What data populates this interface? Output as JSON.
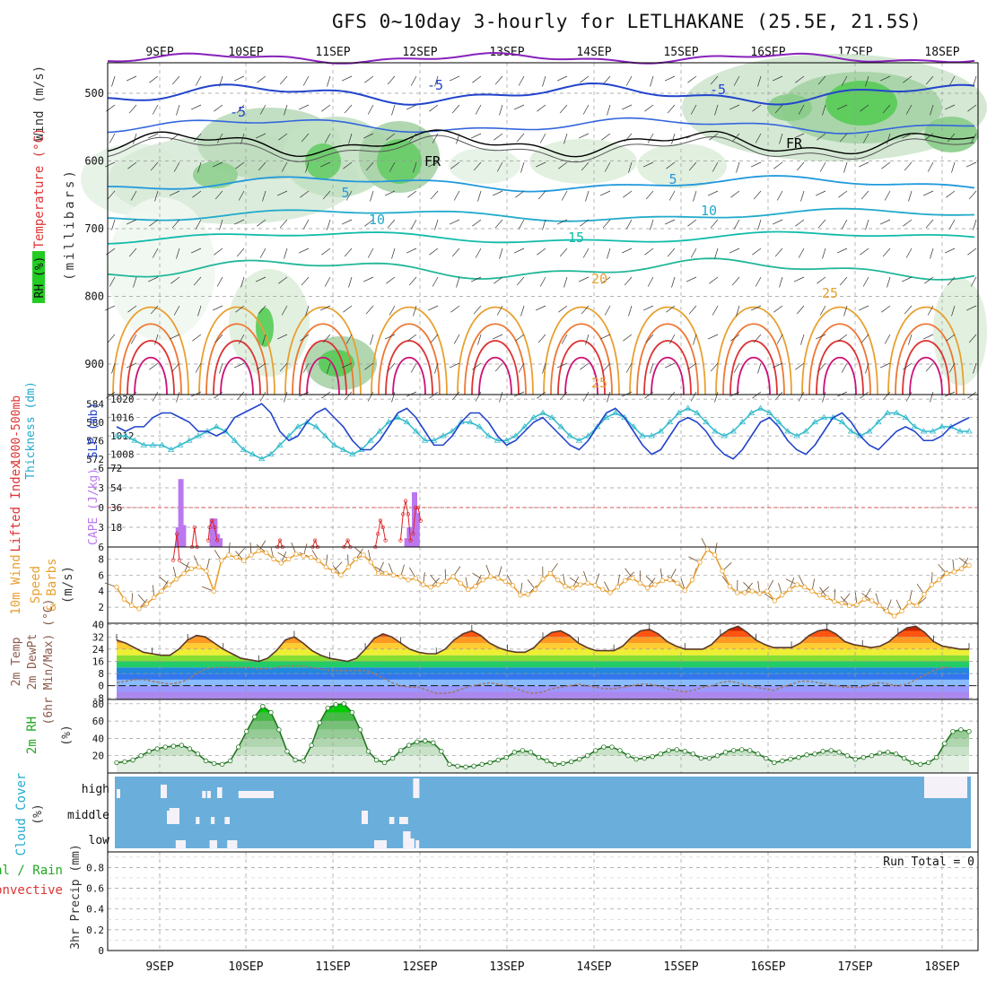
{
  "title": "GFS 0~10day 3-hourly for LETLHAKANE (25.5E, 21.5S)",
  "dates": [
    "9SEP",
    "10SEP",
    "11SEP",
    "12SEP",
    "13SEP",
    "14SEP",
    "15SEP",
    "16SEP",
    "17SEP",
    "18SEP"
  ],
  "colors": {
    "frame": "#000000",
    "grid": "#999999",
    "rh_green": "#22aa22",
    "temp_blue": "#2244cc",
    "cape": "#bb77ee",
    "lifted": "#dd2222",
    "wind": "#e8a030",
    "cloud": "#6aaedb"
  },
  "chart_data": [
    {
      "type": "heatmap",
      "name": "cross-section",
      "ylabels": [
        "Wind (m/s)",
        "Temperature (°C)",
        "RH (%)",
        "(millibars)"
      ],
      "yticks": [
        500,
        600,
        700,
        800,
        900
      ],
      "ylim": [
        945,
        455
      ],
      "contour_labels": [
        "-5",
        "-5",
        "-5",
        "5",
        "5",
        "10",
        "10",
        "15",
        "20",
        "25",
        "25",
        "FR",
        "FR"
      ]
    },
    {
      "type": "line",
      "name": "thickness-slp",
      "ylabels": [
        "1000-500mb",
        "Thickness (dm)",
        "SLP (mb)"
      ],
      "left_ticks": [
        584,
        580,
        576,
        572
      ],
      "right_ticks": [
        1020,
        1016,
        1012,
        1008
      ],
      "series": [
        {
          "name": "SLP",
          "axis": "right",
          "values": [
            1014,
            1013,
            1014,
            1014,
            1016,
            1017,
            1017,
            1016,
            1015,
            1013,
            1013,
            1012,
            1013,
            1016,
            1017,
            1018,
            1019,
            1017,
            1013,
            1011,
            1012,
            1015,
            1017,
            1018,
            1016,
            1014,
            1011,
            1009,
            1009,
            1011,
            1014,
            1017,
            1018,
            1016,
            1013,
            1010,
            1010,
            1012,
            1015,
            1017,
            1017,
            1015,
            1012,
            1010,
            1011,
            1013,
            1015,
            1016,
            1014,
            1012,
            1010,
            1009,
            1011,
            1014,
            1017,
            1018,
            1016,
            1013,
            1010,
            1008,
            1009,
            1012,
            1015,
            1016,
            1015,
            1013,
            1010,
            1008,
            1007,
            1009,
            1012,
            1015,
            1016,
            1014,
            1011,
            1009,
            1008,
            1010,
            1013,
            1016,
            1017,
            1015,
            1012,
            1010,
            1009,
            1011,
            1013,
            1014,
            1013,
            1011,
            1011,
            1012,
            1014,
            1015,
            1016
          ]
        },
        {
          "name": "1000-500mb Thickness",
          "axis": "left",
          "values": [
            577,
            577,
            576,
            575,
            575,
            575,
            574,
            575,
            576,
            577,
            578,
            579,
            578,
            576,
            574,
            573,
            572,
            573,
            575,
            577,
            579,
            580,
            579,
            577,
            575,
            574,
            573,
            574,
            576,
            578,
            580,
            581,
            580,
            578,
            576,
            576,
            577,
            578,
            580,
            580,
            579,
            577,
            576,
            576,
            577,
            579,
            581,
            582,
            581,
            579,
            577,
            576,
            577,
            579,
            581,
            582,
            581,
            579,
            577,
            577,
            578,
            580,
            582,
            583,
            582,
            580,
            578,
            577,
            578,
            580,
            582,
            583,
            582,
            580,
            578,
            577,
            578,
            580,
            581,
            581,
            580,
            578,
            577,
            578,
            580,
            582,
            582,
            581,
            579,
            578,
            578,
            579,
            579,
            578,
            578
          ]
        }
      ]
    },
    {
      "type": "bar",
      "name": "cape-lifted",
      "ylabels": [
        "Lifted Index",
        "CAPE (J/kg)"
      ],
      "left_ticks": [
        -6,
        -3,
        0,
        3,
        6
      ],
      "right_ticks": [
        72,
        54,
        36,
        18
      ],
      "cape_bars": [
        [
          47,
          18
        ],
        [
          49,
          62
        ],
        [
          51,
          20
        ],
        [
          74,
          26
        ],
        [
          76,
          26
        ],
        [
          78,
          12
        ],
        [
          80,
          8
        ],
        [
          229,
          8
        ],
        [
          231,
          18
        ],
        [
          233,
          11
        ],
        [
          235,
          50
        ],
        [
          237,
          31
        ]
      ],
      "lifted_segments": [
        [
          45,
          8,
          48,
          4,
          50,
          8
        ],
        [
          60,
          6,
          62,
          3,
          64,
          6
        ],
        [
          73,
          5,
          74,
          3,
          76,
          2,
          78,
          3,
          80,
          5
        ],
        [
          128,
          6,
          130,
          5,
          132,
          6
        ],
        [
          156,
          6,
          158,
          5,
          160,
          6
        ],
        [
          181,
          6,
          184,
          5,
          186,
          6
        ],
        [
          206,
          6,
          208,
          4,
          210,
          2,
          212,
          3,
          214,
          5
        ],
        [
          226,
          5,
          228,
          1,
          230,
          -1,
          232,
          1,
          234,
          5
        ],
        [
          236,
          4,
          238,
          0,
          240,
          0,
          242,
          2
        ]
      ]
    },
    {
      "type": "line",
      "name": "wind-10m",
      "ylabels": [
        "10m Wind",
        "Speed",
        "& Barbs",
        "(m/s)"
      ],
      "left_ticks": [
        8,
        6,
        4,
        2
      ],
      "series": [
        {
          "name": "10m wind speed",
          "values": [
            4.5,
            3,
            2.2,
            1.8,
            2.4,
            3.2,
            4,
            4.8,
            5.5,
            6.2,
            6.8,
            7,
            6.5,
            4,
            7.8,
            8.5,
            8.2,
            7.8,
            8.5,
            9,
            8.8,
            8,
            7.5,
            8,
            8.6,
            8.4,
            8.2,
            7.8,
            7,
            6.5,
            6,
            7,
            8,
            8.5,
            7.6,
            6.2,
            6.2,
            6,
            5.8,
            5.4,
            5.6,
            4.8,
            4.5,
            4.8,
            5.2,
            5.8,
            5,
            4.2,
            4.6,
            5.4,
            5.8,
            5.6,
            5.2,
            4.7,
            3.5,
            3.6,
            4.2,
            5.5,
            6.2,
            5.4,
            4.6,
            4.4,
            4.8,
            5,
            4.7,
            4.2,
            3.8,
            4.5,
            5.3,
            5.6,
            5,
            4.4,
            4.8,
            5.3,
            5.4,
            5,
            4.1,
            5.4,
            7.6,
            9.2,
            8.5,
            6.5,
            4.6,
            3.8,
            3.8,
            4,
            3.7,
            4,
            2.8,
            3.5,
            4.2,
            4.8,
            4.5,
            4,
            3.5,
            3.2,
            2.7,
            2.5,
            2.2,
            2.3,
            3,
            2.8,
            2.2,
            1.5,
            0.9,
            1.5,
            2.6,
            2.2,
            3.6,
            4.8,
            5.4,
            6.2,
            6.4,
            6.8,
            7.2
          ]
        }
      ]
    },
    {
      "type": "area",
      "name": "temperature-2m",
      "ylabels": [
        "2m Temp",
        "2m DewPt",
        "(6hr Min/Max) (°C)"
      ],
      "left_ticks": [
        40,
        32,
        24,
        16,
        8,
        0,
        -8
      ],
      "series": [
        {
          "name": "2m Temp",
          "values": [
            30,
            28,
            25,
            22,
            21,
            20,
            20,
            24,
            30,
            33,
            32,
            28,
            24,
            21,
            18,
            17,
            16,
            18,
            23,
            30,
            32,
            28,
            23,
            20,
            18,
            17,
            16,
            18,
            24,
            31,
            34,
            32,
            28,
            24,
            22,
            21,
            21,
            24,
            30,
            34,
            36,
            33,
            28,
            25,
            23,
            22,
            22,
            25,
            31,
            35,
            36,
            33,
            28,
            25,
            23,
            23,
            23,
            26,
            32,
            36,
            37,
            34,
            29,
            26,
            24,
            24,
            24,
            27,
            33,
            37,
            39,
            35,
            30,
            27,
            25,
            25,
            25,
            28,
            33,
            36,
            37,
            34,
            29,
            27,
            26,
            25,
            26,
            29,
            34,
            38,
            39,
            35,
            29,
            26,
            25,
            24,
            24
          ]
        },
        {
          "name": "2m DewPt",
          "values": [
            2,
            3,
            4,
            4,
            3,
            2,
            1,
            2,
            4,
            8,
            11,
            12,
            12,
            12,
            12,
            12,
            11,
            11,
            12,
            13,
            13,
            13,
            12,
            11,
            10,
            10,
            10,
            10,
            10,
            8,
            5,
            2,
            0,
            -1,
            -1,
            -3,
            -5,
            -5,
            -4,
            -2,
            0,
            1,
            2,
            1,
            0,
            -2,
            -4,
            -5,
            -4,
            -2,
            -1,
            0,
            1,
            0,
            -1,
            -2,
            -2,
            -1,
            0,
            1,
            1,
            0,
            -2,
            -3,
            -4,
            -3,
            -1,
            0,
            2,
            3,
            2,
            0,
            -1,
            -2,
            -3,
            -1,
            1,
            3,
            3,
            2,
            1,
            0,
            -1,
            -1,
            -1,
            1,
            2,
            1,
            0,
            1,
            4,
            7,
            10,
            12,
            12
          ]
        }
      ]
    },
    {
      "type": "area",
      "name": "rh-2m",
      "ylabels": [
        "2m RH",
        "(%)"
      ],
      "left_ticks": [
        80,
        60,
        40,
        20
      ],
      "series": [
        {
          "name": "2m RH",
          "values": [
            12,
            13,
            15,
            20,
            25,
            28,
            30,
            31,
            32,
            28,
            22,
            14,
            11,
            10,
            14,
            30,
            48,
            65,
            77,
            70,
            50,
            25,
            15,
            14,
            32,
            58,
            75,
            79,
            80,
            70,
            50,
            25,
            15,
            12,
            17,
            26,
            32,
            36,
            37,
            35,
            25,
            10,
            8,
            7,
            8,
            10,
            12,
            15,
            18,
            24,
            26,
            24,
            18,
            14,
            10,
            11,
            13,
            16,
            20,
            26,
            30,
            30,
            26,
            20,
            16,
            17,
            19,
            22,
            26,
            27,
            25,
            22,
            17,
            17,
            20,
            24,
            26,
            27,
            26,
            22,
            17,
            12,
            14,
            16,
            18,
            21,
            22,
            25,
            26,
            24,
            20,
            16,
            18,
            20,
            23,
            24,
            22,
            17,
            12,
            10,
            12,
            18,
            34,
            48,
            50,
            48
          ]
        }
      ]
    },
    {
      "type": "bar",
      "name": "cloud-cover",
      "ylabels": [
        "Cloud Cover",
        "(%)"
      ],
      "level_labels": [
        "high",
        "middle",
        "low"
      ],
      "cells": [
        [
          0,
          1,
          0,
          8
        ],
        [
          0,
          2,
          0,
          10
        ],
        [
          35,
          40,
          0,
          15
        ],
        [
          40,
          45,
          1,
          15
        ],
        [
          42,
          50,
          1,
          18
        ],
        [
          47,
          55,
          2,
          10
        ],
        [
          63,
          66,
          1,
          8
        ],
        [
          68,
          71,
          0,
          8
        ],
        [
          72,
          75,
          0,
          8
        ],
        [
          75,
          78,
          1,
          8
        ],
        [
          74,
          80,
          2,
          10
        ],
        [
          80,
          84,
          0,
          12
        ],
        [
          86,
          90,
          1,
          8
        ],
        [
          88,
          93,
          2,
          10
        ],
        [
          92,
          96,
          2,
          10
        ],
        [
          97,
          110,
          0,
          8
        ],
        [
          108,
          115,
          0,
          8
        ],
        [
          115,
          125,
          0,
          8
        ],
        [
          195,
          200,
          1,
          15
        ],
        [
          205,
          210,
          2,
          10
        ],
        [
          208,
          215,
          2,
          10
        ],
        [
          217,
          221,
          1,
          8
        ],
        [
          225,
          232,
          1,
          8
        ],
        [
          228,
          234,
          2,
          20
        ],
        [
          232,
          237,
          2,
          12
        ],
        [
          236,
          241,
          0,
          22
        ],
        [
          238,
          240,
          2,
          10
        ]
      ]
    },
    {
      "type": "bar",
      "name": "precip",
      "ylabels": [
        "Total / Rain",
        "Convective",
        "3hr Precip (mm)"
      ],
      "left_ticks": [
        0.8,
        0.6,
        0.4,
        0.2,
        0
      ],
      "values": [],
      "run_total": "Run Total = 0"
    }
  ]
}
